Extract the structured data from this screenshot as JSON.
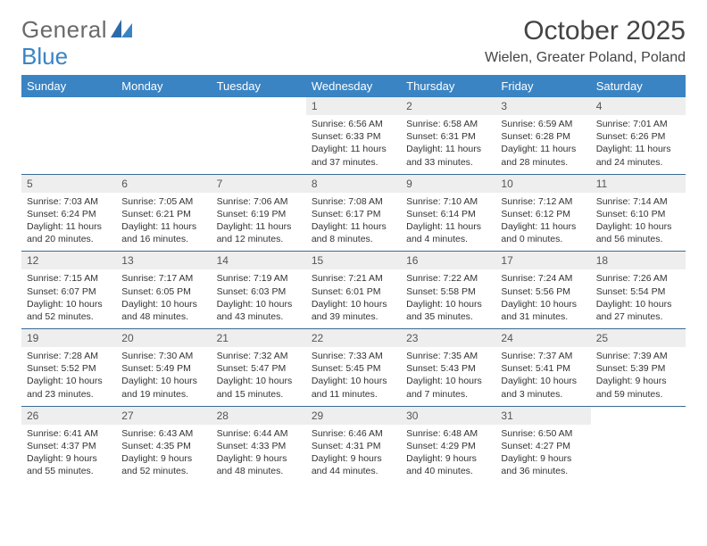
{
  "brand": {
    "word1": "General",
    "word2": "Blue"
  },
  "title": "October 2025",
  "location": "Wielen, Greater Poland, Poland",
  "colors": {
    "header_bg": "#3a84c4",
    "header_text": "#ffffff",
    "daynum_bg": "#eeeeee",
    "row_border": "#3a6a94",
    "logo_gray": "#6a6a6a",
    "logo_blue": "#3a84c4"
  },
  "weekdays": [
    "Sunday",
    "Monday",
    "Tuesday",
    "Wednesday",
    "Thursday",
    "Friday",
    "Saturday"
  ],
  "weeks": [
    [
      {
        "empty": true
      },
      {
        "empty": true
      },
      {
        "empty": true
      },
      {
        "day": "1",
        "sunrise": "Sunrise: 6:56 AM",
        "sunset": "Sunset: 6:33 PM",
        "daylight1": "Daylight: 11 hours",
        "daylight2": "and 37 minutes."
      },
      {
        "day": "2",
        "sunrise": "Sunrise: 6:58 AM",
        "sunset": "Sunset: 6:31 PM",
        "daylight1": "Daylight: 11 hours",
        "daylight2": "and 33 minutes."
      },
      {
        "day": "3",
        "sunrise": "Sunrise: 6:59 AM",
        "sunset": "Sunset: 6:28 PM",
        "daylight1": "Daylight: 11 hours",
        "daylight2": "and 28 minutes."
      },
      {
        "day": "4",
        "sunrise": "Sunrise: 7:01 AM",
        "sunset": "Sunset: 6:26 PM",
        "daylight1": "Daylight: 11 hours",
        "daylight2": "and 24 minutes."
      }
    ],
    [
      {
        "day": "5",
        "sunrise": "Sunrise: 7:03 AM",
        "sunset": "Sunset: 6:24 PM",
        "daylight1": "Daylight: 11 hours",
        "daylight2": "and 20 minutes."
      },
      {
        "day": "6",
        "sunrise": "Sunrise: 7:05 AM",
        "sunset": "Sunset: 6:21 PM",
        "daylight1": "Daylight: 11 hours",
        "daylight2": "and 16 minutes."
      },
      {
        "day": "7",
        "sunrise": "Sunrise: 7:06 AM",
        "sunset": "Sunset: 6:19 PM",
        "daylight1": "Daylight: 11 hours",
        "daylight2": "and 12 minutes."
      },
      {
        "day": "8",
        "sunrise": "Sunrise: 7:08 AM",
        "sunset": "Sunset: 6:17 PM",
        "daylight1": "Daylight: 11 hours",
        "daylight2": "and 8 minutes."
      },
      {
        "day": "9",
        "sunrise": "Sunrise: 7:10 AM",
        "sunset": "Sunset: 6:14 PM",
        "daylight1": "Daylight: 11 hours",
        "daylight2": "and 4 minutes."
      },
      {
        "day": "10",
        "sunrise": "Sunrise: 7:12 AM",
        "sunset": "Sunset: 6:12 PM",
        "daylight1": "Daylight: 11 hours",
        "daylight2": "and 0 minutes."
      },
      {
        "day": "11",
        "sunrise": "Sunrise: 7:14 AM",
        "sunset": "Sunset: 6:10 PM",
        "daylight1": "Daylight: 10 hours",
        "daylight2": "and 56 minutes."
      }
    ],
    [
      {
        "day": "12",
        "sunrise": "Sunrise: 7:15 AM",
        "sunset": "Sunset: 6:07 PM",
        "daylight1": "Daylight: 10 hours",
        "daylight2": "and 52 minutes."
      },
      {
        "day": "13",
        "sunrise": "Sunrise: 7:17 AM",
        "sunset": "Sunset: 6:05 PM",
        "daylight1": "Daylight: 10 hours",
        "daylight2": "and 48 minutes."
      },
      {
        "day": "14",
        "sunrise": "Sunrise: 7:19 AM",
        "sunset": "Sunset: 6:03 PM",
        "daylight1": "Daylight: 10 hours",
        "daylight2": "and 43 minutes."
      },
      {
        "day": "15",
        "sunrise": "Sunrise: 7:21 AM",
        "sunset": "Sunset: 6:01 PM",
        "daylight1": "Daylight: 10 hours",
        "daylight2": "and 39 minutes."
      },
      {
        "day": "16",
        "sunrise": "Sunrise: 7:22 AM",
        "sunset": "Sunset: 5:58 PM",
        "daylight1": "Daylight: 10 hours",
        "daylight2": "and 35 minutes."
      },
      {
        "day": "17",
        "sunrise": "Sunrise: 7:24 AM",
        "sunset": "Sunset: 5:56 PM",
        "daylight1": "Daylight: 10 hours",
        "daylight2": "and 31 minutes."
      },
      {
        "day": "18",
        "sunrise": "Sunrise: 7:26 AM",
        "sunset": "Sunset: 5:54 PM",
        "daylight1": "Daylight: 10 hours",
        "daylight2": "and 27 minutes."
      }
    ],
    [
      {
        "day": "19",
        "sunrise": "Sunrise: 7:28 AM",
        "sunset": "Sunset: 5:52 PM",
        "daylight1": "Daylight: 10 hours",
        "daylight2": "and 23 minutes."
      },
      {
        "day": "20",
        "sunrise": "Sunrise: 7:30 AM",
        "sunset": "Sunset: 5:49 PM",
        "daylight1": "Daylight: 10 hours",
        "daylight2": "and 19 minutes."
      },
      {
        "day": "21",
        "sunrise": "Sunrise: 7:32 AM",
        "sunset": "Sunset: 5:47 PM",
        "daylight1": "Daylight: 10 hours",
        "daylight2": "and 15 minutes."
      },
      {
        "day": "22",
        "sunrise": "Sunrise: 7:33 AM",
        "sunset": "Sunset: 5:45 PM",
        "daylight1": "Daylight: 10 hours",
        "daylight2": "and 11 minutes."
      },
      {
        "day": "23",
        "sunrise": "Sunrise: 7:35 AM",
        "sunset": "Sunset: 5:43 PM",
        "daylight1": "Daylight: 10 hours",
        "daylight2": "and 7 minutes."
      },
      {
        "day": "24",
        "sunrise": "Sunrise: 7:37 AM",
        "sunset": "Sunset: 5:41 PM",
        "daylight1": "Daylight: 10 hours",
        "daylight2": "and 3 minutes."
      },
      {
        "day": "25",
        "sunrise": "Sunrise: 7:39 AM",
        "sunset": "Sunset: 5:39 PM",
        "daylight1": "Daylight: 9 hours",
        "daylight2": "and 59 minutes."
      }
    ],
    [
      {
        "day": "26",
        "sunrise": "Sunrise: 6:41 AM",
        "sunset": "Sunset: 4:37 PM",
        "daylight1": "Daylight: 9 hours",
        "daylight2": "and 55 minutes."
      },
      {
        "day": "27",
        "sunrise": "Sunrise: 6:43 AM",
        "sunset": "Sunset: 4:35 PM",
        "daylight1": "Daylight: 9 hours",
        "daylight2": "and 52 minutes."
      },
      {
        "day": "28",
        "sunrise": "Sunrise: 6:44 AM",
        "sunset": "Sunset: 4:33 PM",
        "daylight1": "Daylight: 9 hours",
        "daylight2": "and 48 minutes."
      },
      {
        "day": "29",
        "sunrise": "Sunrise: 6:46 AM",
        "sunset": "Sunset: 4:31 PM",
        "daylight1": "Daylight: 9 hours",
        "daylight2": "and 44 minutes."
      },
      {
        "day": "30",
        "sunrise": "Sunrise: 6:48 AM",
        "sunset": "Sunset: 4:29 PM",
        "daylight1": "Daylight: 9 hours",
        "daylight2": "and 40 minutes."
      },
      {
        "day": "31",
        "sunrise": "Sunrise: 6:50 AM",
        "sunset": "Sunset: 4:27 PM",
        "daylight1": "Daylight: 9 hours",
        "daylight2": "and 36 minutes."
      },
      {
        "empty": true
      }
    ]
  ]
}
